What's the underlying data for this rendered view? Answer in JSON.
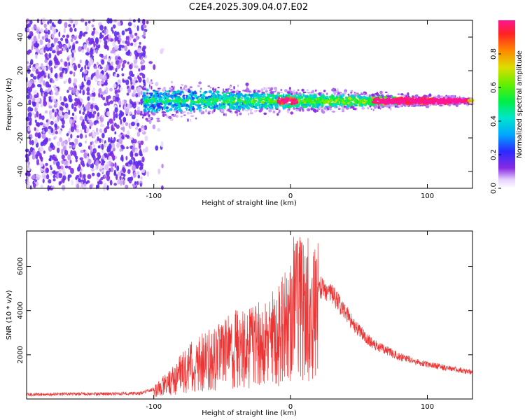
{
  "title": "C2E4.2025.309.04.07.E02",
  "chart_data": [
    {
      "type": "heatmap",
      "name": "spectrogram",
      "xlabel": "Height of straight line (km)",
      "ylabel": "Frequency (Hz)",
      "xlim": [
        -193,
        133
      ],
      "ylim": [
        -50,
        50
      ],
      "xticks": [
        -100,
        0,
        100
      ],
      "yticks": [
        -40,
        -20,
        0,
        20,
        40
      ],
      "colorbar": {
        "label": "Normalized spectral amplitude",
        "range": [
          0,
          1
        ],
        "ticks": [
          "0.0",
          "0.2",
          "0.4",
          "0.6",
          "0.8"
        ]
      },
      "description_points": {
        "noise_region_x": [
          -193,
          -93
        ],
        "signal_start_x": -108,
        "signal_center_freq_hz": 2,
        "strong_segments_x": [
          [
            -10,
            5
          ],
          [
            60,
            130
          ]
        ]
      }
    },
    {
      "type": "line",
      "name": "snr",
      "xlabel": "Height of straight line (km)",
      "ylabel": "SNR (10 * v/v)",
      "xlim": [
        -193,
        133
      ],
      "ylim": [
        0,
        7600
      ],
      "xticks": [
        -100,
        0,
        100
      ],
      "yticks": [
        2000,
        4000,
        6000
      ],
      "color": "#ee3333",
      "envelope": {
        "x": [
          -193,
          -110,
          -100,
          -90,
          -80,
          -70,
          -60,
          -50,
          -40,
          -30,
          -20,
          -10,
          0,
          5,
          10,
          20,
          30,
          40,
          50,
          60,
          80,
          100,
          120,
          133
        ],
        "y": [
          200,
          250,
          450,
          900,
          1500,
          2000,
          2300,
          2600,
          2900,
          3000,
          3200,
          3700,
          4400,
          5200,
          5300,
          5100,
          4800,
          3900,
          3100,
          2500,
          1900,
          1550,
          1350,
          1200
        ]
      }
    }
  ]
}
